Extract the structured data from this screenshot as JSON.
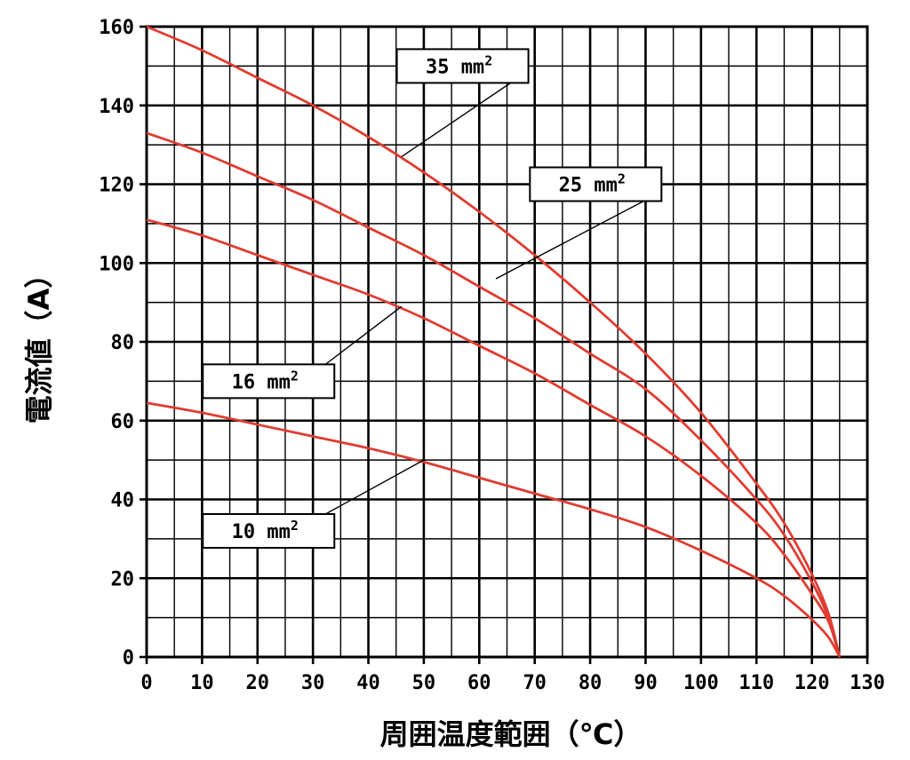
{
  "chart_data": {
    "type": "line",
    "xlabel": "周囲温度範囲（℃）",
    "ylabel": "電流値（A）",
    "xlim": [
      0,
      130
    ],
    "ylim": [
      0,
      160
    ],
    "x_ticks": [
      0,
      10,
      20,
      30,
      40,
      50,
      60,
      70,
      80,
      90,
      100,
      110,
      120,
      130
    ],
    "y_ticks": [
      0,
      20,
      40,
      60,
      80,
      100,
      120,
      140,
      160
    ],
    "grid": true,
    "legend": "none",
    "series_color": "#e03c31",
    "series": [
      {
        "name": "35 mm",
        "label_base": "35 mm",
        "label_sup": "2",
        "x": [
          0,
          10,
          20,
          30,
          40,
          50,
          60,
          70,
          80,
          90,
          100,
          110,
          115,
          120,
          123,
          125
        ],
        "values": [
          160,
          154,
          147,
          140,
          132,
          123,
          113,
          102,
          90,
          77,
          62,
          44,
          34,
          21,
          11,
          0
        ]
      },
      {
        "name": "25 mm",
        "label_base": "25 mm",
        "label_sup": "2",
        "x": [
          0,
          10,
          20,
          30,
          40,
          50,
          60,
          70,
          80,
          90,
          100,
          110,
          115,
          120,
          123,
          125
        ],
        "values": [
          133,
          128,
          122,
          116,
          109,
          102,
          94,
          86,
          77,
          68,
          55,
          40,
          31,
          19,
          10,
          0
        ]
      },
      {
        "name": "16 mm",
        "label_base": "16 mm",
        "label_sup": "2",
        "x": [
          0,
          10,
          20,
          30,
          40,
          50,
          60,
          70,
          80,
          90,
          100,
          110,
          115,
          120,
          123,
          125
        ],
        "values": [
          111,
          107,
          102,
          97,
          92,
          86,
          79,
          72,
          64,
          56,
          46,
          34,
          26,
          16,
          9,
          0
        ]
      },
      {
        "name": "10 mm",
        "label_base": "10 mm",
        "label_sup": "2",
        "x": [
          0,
          10,
          20,
          30,
          40,
          50,
          60,
          70,
          80,
          90,
          100,
          110,
          115,
          120,
          123,
          125
        ],
        "values": [
          64.5,
          62,
          59,
          56,
          53,
          49.5,
          45.5,
          41.5,
          37.5,
          33,
          27,
          20,
          15.5,
          9.5,
          5,
          0
        ]
      }
    ],
    "annotations": [
      {
        "series": 0,
        "text_base": "35 mm",
        "text_sup": "2",
        "point": [
          46,
          127
        ],
        "box_at": [
          57,
          150
        ]
      },
      {
        "series": 1,
        "text_base": "25 mm",
        "text_sup": "2",
        "point": [
          63,
          96
        ],
        "box_at": [
          81,
          120
        ]
      },
      {
        "series": 2,
        "text_base": "16 mm",
        "text_sup": "2",
        "point": [
          46,
          89
        ],
        "box_at": [
          22,
          70
        ]
      },
      {
        "series": 3,
        "text_base": "10 mm",
        "text_sup": "2",
        "point": [
          50,
          50
        ],
        "box_at": [
          22,
          32
        ]
      }
    ]
  }
}
